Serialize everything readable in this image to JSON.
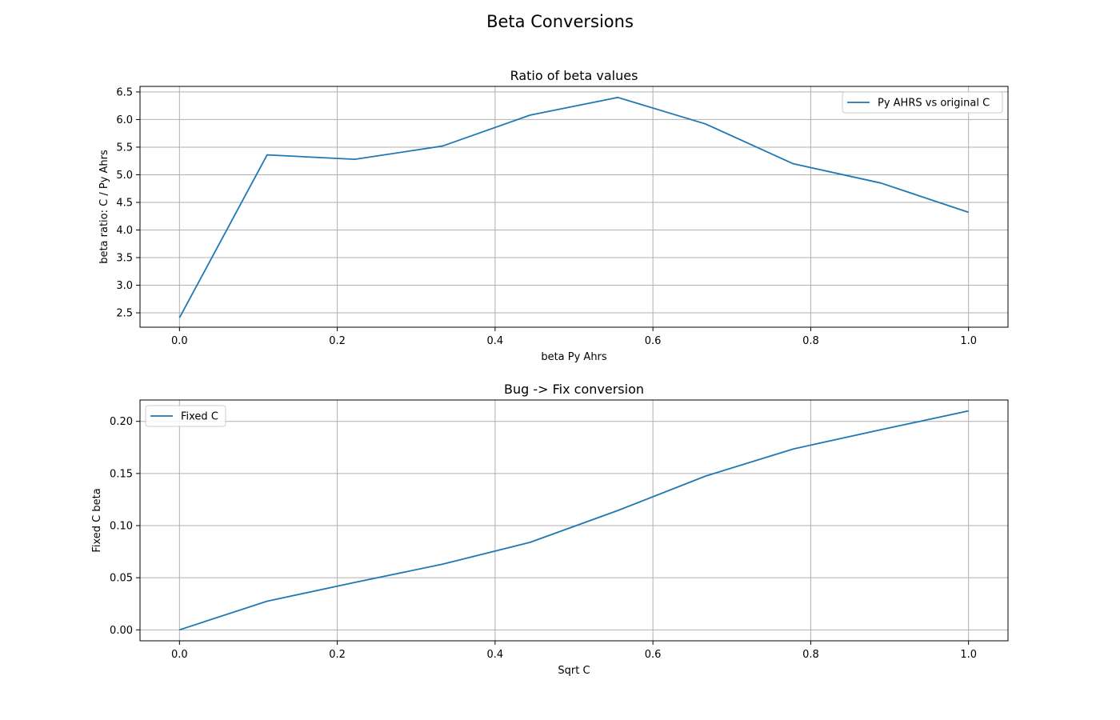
{
  "figure": {
    "suptitle": "Beta Conversions"
  },
  "chart_data": [
    {
      "type": "line",
      "title": "Ratio of beta values",
      "xlabel": "beta Py Ahrs",
      "ylabel": "beta ratio: C / Py Ahrs",
      "xlim": [
        -0.05,
        1.05
      ],
      "ylim": [
        2.24,
        6.6
      ],
      "xticks": [
        0.0,
        0.2,
        0.4,
        0.6,
        0.8,
        1.0
      ],
      "xtick_labels": [
        "0.0",
        "0.2",
        "0.4",
        "0.6",
        "0.8",
        "1.0"
      ],
      "yticks": [
        2.5,
        3.0,
        3.5,
        4.0,
        4.5,
        5.0,
        5.5,
        6.0,
        6.5
      ],
      "ytick_labels": [
        "2.5",
        "3.0",
        "3.5",
        "4.0",
        "4.5",
        "5.0",
        "5.5",
        "6.0",
        "6.5"
      ],
      "grid": true,
      "legend_position": "upper right",
      "series": [
        {
          "name": "Py AHRS vs original C",
          "color": "#1f77b4",
          "x": [
            0.0,
            0.1111,
            0.2222,
            0.3333,
            0.4444,
            0.5556,
            0.6667,
            0.7778,
            0.8889,
            1.0
          ],
          "y": [
            2.41,
            5.36,
            5.28,
            5.52,
            6.08,
            6.4,
            5.92,
            5.2,
            4.85,
            4.32
          ]
        }
      ]
    },
    {
      "type": "line",
      "title": "Bug -> Fix conversion",
      "xlabel": "Sqrt C",
      "ylabel": "Fixed C beta",
      "xlim": [
        -0.05,
        1.05
      ],
      "ylim": [
        -0.0105,
        0.2205
      ],
      "xticks": [
        0.0,
        0.2,
        0.4,
        0.6,
        0.8,
        1.0
      ],
      "xtick_labels": [
        "0.0",
        "0.2",
        "0.4",
        "0.6",
        "0.8",
        "1.0"
      ],
      "yticks": [
        0.0,
        0.05,
        0.1,
        0.15,
        0.2
      ],
      "ytick_labels": [
        "0.00",
        "0.05",
        "0.10",
        "0.15",
        "0.20"
      ],
      "grid": true,
      "legend_position": "upper left",
      "series": [
        {
          "name": "Fixed C",
          "color": "#1f77b4",
          "x": [
            0.0,
            0.1111,
            0.2222,
            0.3333,
            0.4444,
            0.5556,
            0.6667,
            0.7778,
            0.8889,
            1.0
          ],
          "y": [
            0.0,
            0.0275,
            0.0455,
            0.063,
            0.084,
            0.1145,
            0.1475,
            0.1735,
            0.192,
            0.21
          ]
        }
      ]
    }
  ]
}
